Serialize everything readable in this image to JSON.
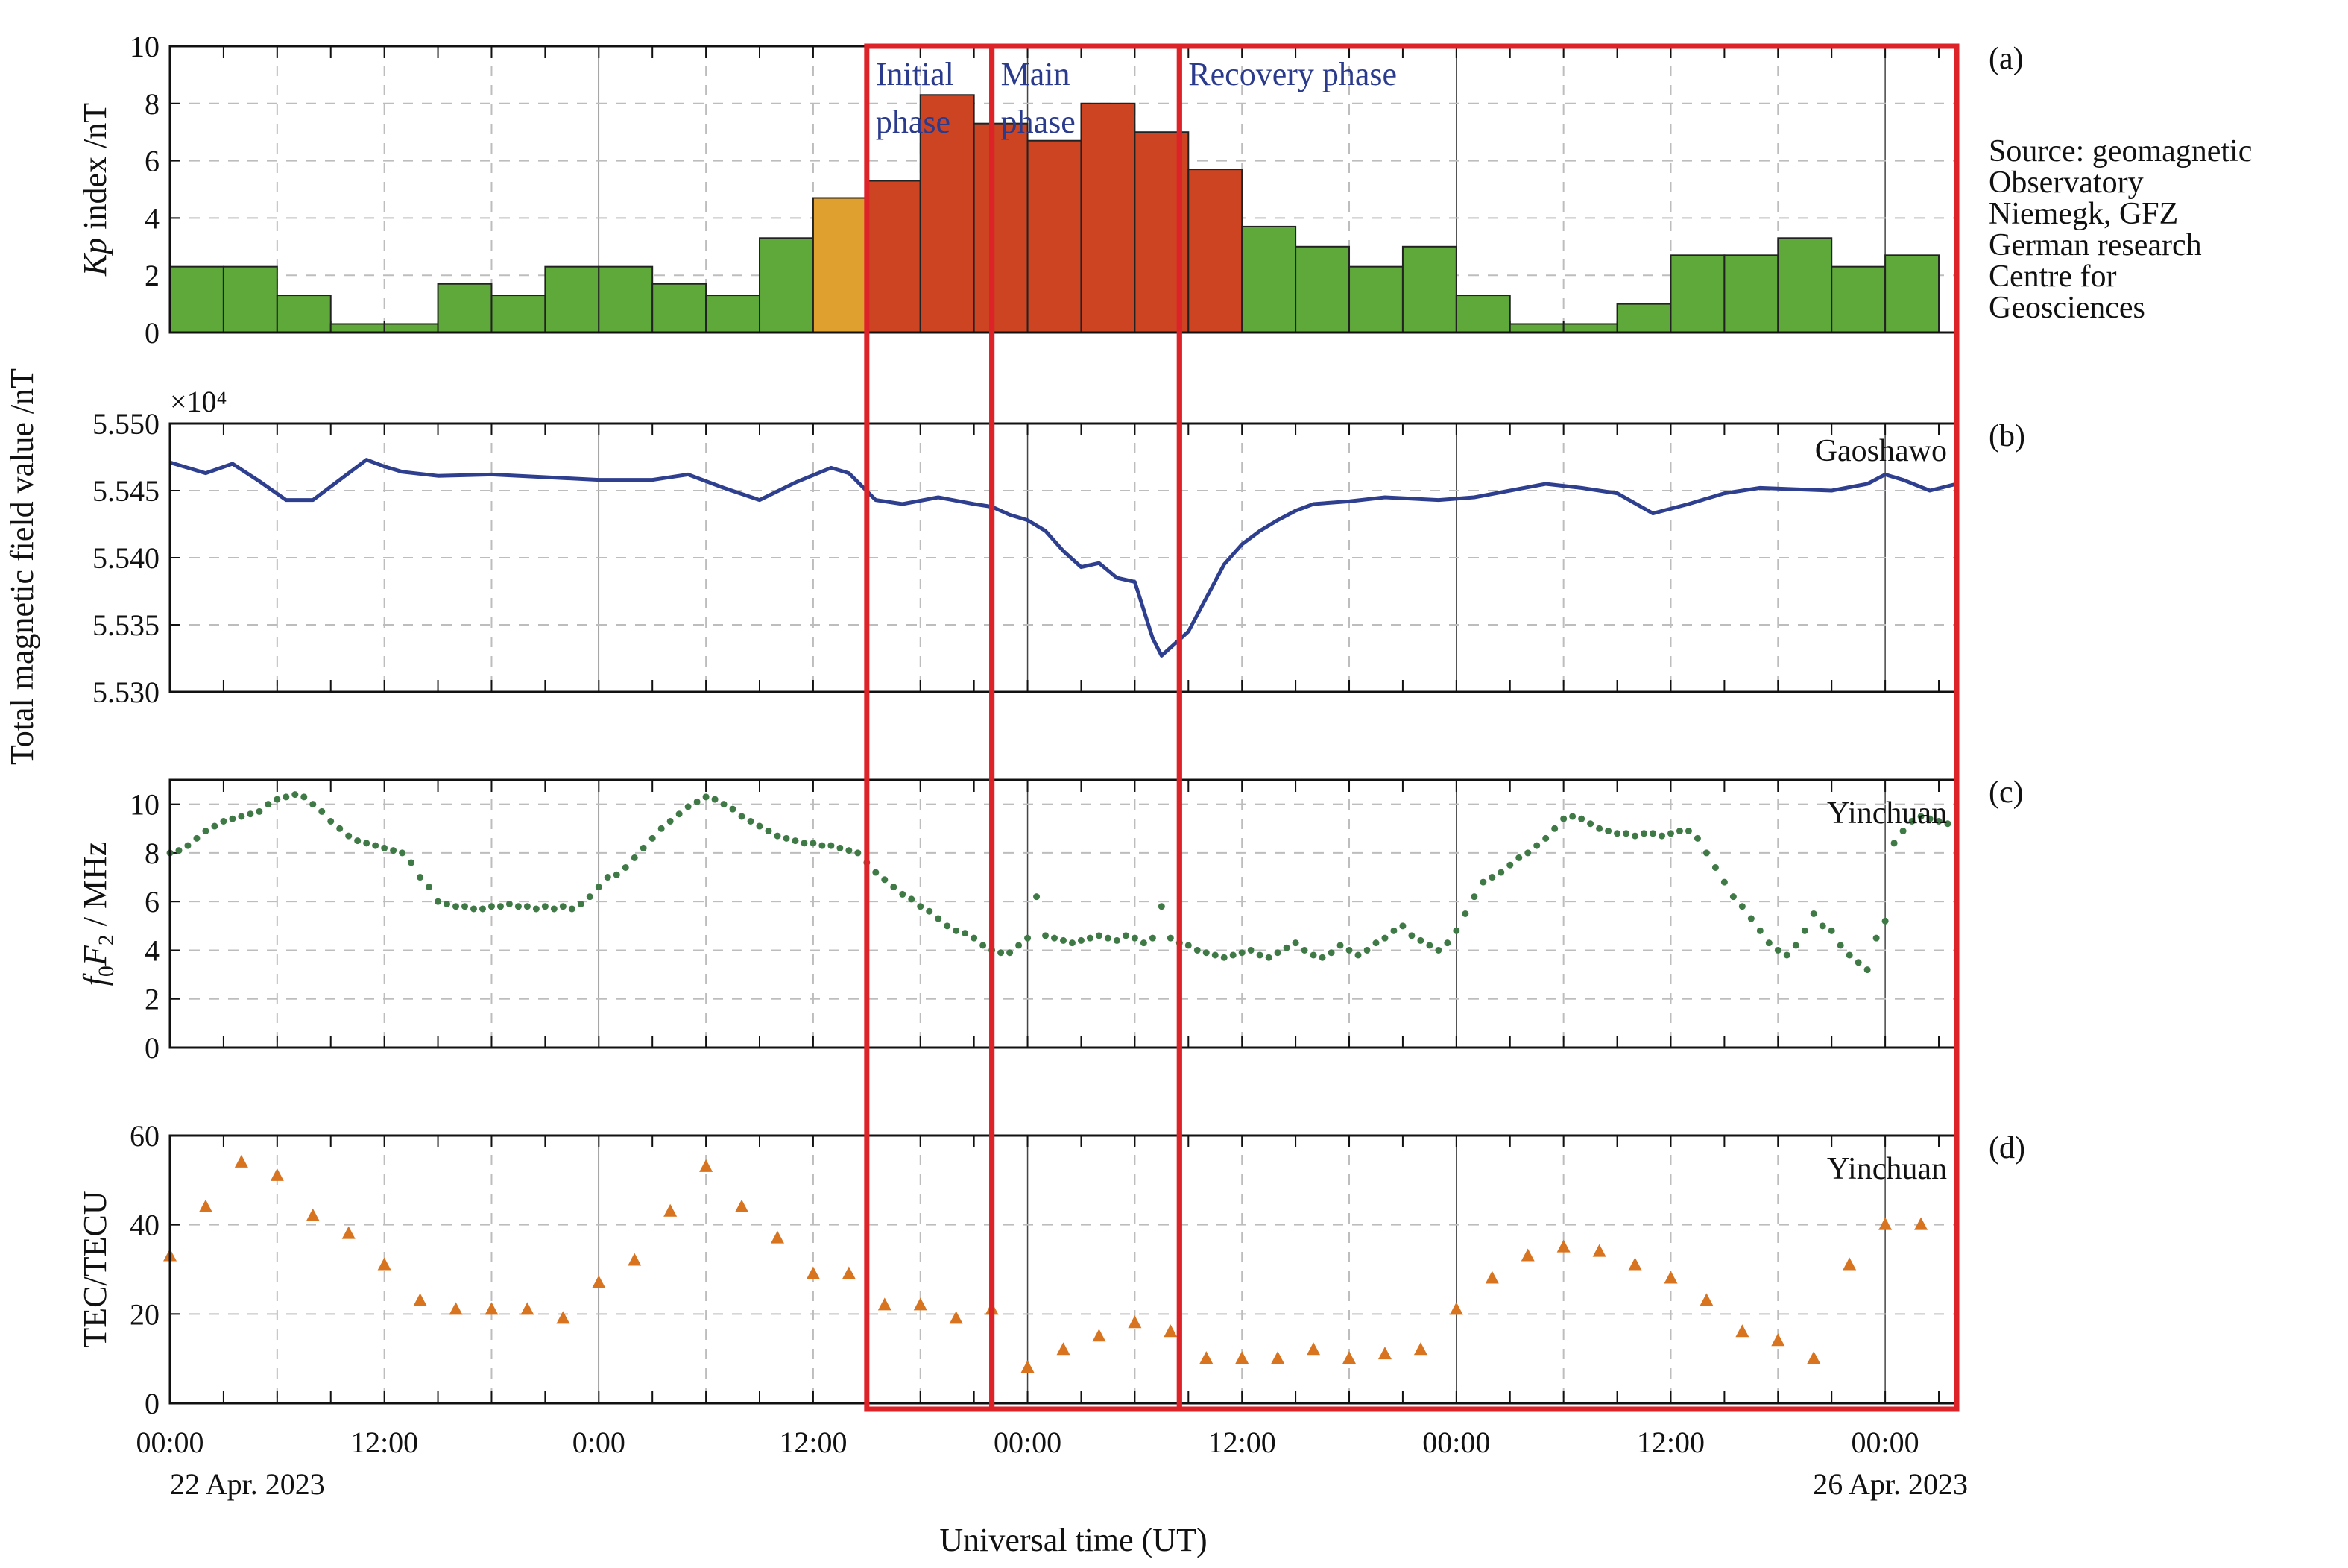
{
  "colors": {
    "kp_quiet": "#5fa83a",
    "kp_moderate": "#e0a030",
    "kp_storm": "#cc4422",
    "mag_line": "#2e3f8f",
    "fof2_points": "#3f7a46",
    "tec_points": "#d8741f",
    "phase_box": "#dd2228",
    "phase_text": "#2a3a8c"
  },
  "x_axis": {
    "title": "Universal time (UT)",
    "range_hours": [
      0,
      100
    ],
    "ticks": [
      {
        "hour": 0,
        "label": "00:00"
      },
      {
        "hour": 12,
        "label": "12:00"
      },
      {
        "hour": 24,
        "label": "0:00"
      },
      {
        "hour": 36,
        "label": "12:00"
      },
      {
        "hour": 48,
        "label": "00:00"
      },
      {
        "hour": 60,
        "label": "12:00"
      },
      {
        "hour": 72,
        "label": "00:00"
      },
      {
        "hour": 84,
        "label": "12:00"
      },
      {
        "hour": 96,
        "label": "00:00"
      }
    ],
    "date_left": "22 Apr. 2023",
    "date_right": "26 Apr. 2023"
  },
  "shared_ylabel": "Total magnetic field value /nT",
  "phases": [
    {
      "label": "Initial",
      "label2": "phase",
      "start_hour": 39,
      "end_hour": 46
    },
    {
      "label": "Main",
      "label2": "phase",
      "start_hour": 46,
      "end_hour": 56.5
    },
    {
      "label": "Recovery phase",
      "label2": "",
      "start_hour": 56.5,
      "end_hour": 100
    }
  ],
  "chart_data": [
    {
      "panel": "a",
      "tag": "(a)",
      "type": "bar",
      "ylabel_italic": "Kp",
      "ylabel_rest": " index /nT",
      "ylim": [
        0,
        10
      ],
      "yticks": [
        0,
        2,
        4,
        6,
        8,
        10
      ],
      "bin_hours": 3,
      "values": [
        2.3,
        2.3,
        1.3,
        0.3,
        0.3,
        1.7,
        1.3,
        2.3,
        2.3,
        1.7,
        1.3,
        3.3,
        4.7,
        5.3,
        8.3,
        7.3,
        6.7,
        8.0,
        7.0,
        5.7,
        3.7,
        3.0,
        2.3,
        3.0,
        1.3,
        0.3,
        0.3,
        1.0,
        2.7,
        2.7,
        3.3,
        2.3,
        2.7
      ],
      "source": [
        "Source: geomagnetic",
        "Observatory",
        "Niemegk, GFZ",
        "German research",
        "Centre for",
        "Geosciences"
      ]
    },
    {
      "panel": "b",
      "tag": "(b)",
      "type": "line",
      "station": "Gaoshawo",
      "multiplier": "×10⁴",
      "ylim": [
        5.53,
        5.55
      ],
      "yticks": [
        5.53,
        5.535,
        5.54,
        5.545,
        5.55
      ],
      "ytick_labels": [
        "5.530",
        "5.535",
        "5.540",
        "5.545",
        "5.550"
      ],
      "x": [
        0,
        2,
        3.5,
        5,
        6.5,
        8,
        9.5,
        11,
        12,
        13,
        15,
        18,
        21,
        24,
        27,
        29,
        31,
        33,
        35,
        37,
        38,
        39.5,
        41,
        43,
        45,
        46,
        47,
        48,
        49,
        50,
        51,
        52,
        53,
        54,
        55,
        55.5,
        56,
        57,
        58,
        59,
        60,
        61,
        62,
        63,
        64,
        66,
        68,
        71,
        73,
        75,
        77,
        79,
        81,
        83,
        85,
        87,
        89,
        91,
        93,
        95,
        96,
        97,
        98.5,
        100
      ],
      "values": [
        5.5471,
        5.5463,
        5.547,
        5.5457,
        5.5443,
        5.5443,
        5.5458,
        5.5473,
        5.5468,
        5.5464,
        5.5461,
        5.5462,
        5.546,
        5.5458,
        5.5458,
        5.5462,
        5.5452,
        5.5443,
        5.5456,
        5.5467,
        5.5463,
        5.5443,
        5.544,
        5.5445,
        5.544,
        5.5438,
        5.5432,
        5.5428,
        5.542,
        5.5405,
        5.5393,
        5.5396,
        5.5385,
        5.5382,
        5.534,
        5.5327,
        5.5333,
        5.5345,
        5.537,
        5.5395,
        5.541,
        5.542,
        5.5428,
        5.5435,
        5.544,
        5.5442,
        5.5445,
        5.5443,
        5.5445,
        5.545,
        5.5455,
        5.5452,
        5.5448,
        5.5433,
        5.544,
        5.5448,
        5.5452,
        5.5451,
        5.545,
        5.5455,
        5.5462,
        5.5458,
        5.545,
        5.5455
      ]
    },
    {
      "panel": "c",
      "tag": "(c)",
      "type": "scatter",
      "station": "Yinchuan",
      "ylabel_parts": [
        "f",
        "0",
        "F",
        "2",
        " / MHz"
      ],
      "ylim": [
        0,
        11
      ],
      "yticks": [
        0,
        2,
        4,
        6,
        8,
        10
      ],
      "x": [
        0,
        0.5,
        1,
        1.5,
        2,
        2.5,
        3,
        3.5,
        4,
        4.5,
        5,
        5.5,
        6,
        6.5,
        7,
        7.5,
        8,
        8.5,
        9,
        9.5,
        10,
        10.5,
        11,
        11.5,
        12,
        12.5,
        13,
        13.5,
        14,
        14.5,
        15,
        15.5,
        16,
        16.5,
        17,
        17.5,
        18,
        18.5,
        19,
        19.5,
        20,
        20.5,
        21,
        21.5,
        22,
        22.5,
        23,
        23.5,
        24,
        24.5,
        25,
        25.5,
        26,
        26.5,
        27,
        27.5,
        28,
        28.5,
        29,
        29.5,
        30,
        30.5,
        31,
        31.5,
        32,
        32.5,
        33,
        33.5,
        34,
        34.5,
        35,
        35.5,
        36,
        36.5,
        37,
        37.5,
        38,
        38.5,
        39,
        39.5,
        40,
        40.5,
        41,
        41.5,
        42,
        42.5,
        43,
        43.5,
        44,
        44.5,
        45,
        45.5,
        46,
        46.5,
        47,
        47.5,
        48,
        48.5,
        49,
        49.5,
        50,
        50.5,
        51,
        51.5,
        52,
        52.5,
        53,
        53.5,
        54,
        54.5,
        55,
        55.5,
        56,
        56.5,
        57,
        57.5,
        58,
        58.5,
        59,
        59.5,
        60,
        60.5,
        61,
        61.5,
        62,
        62.5,
        63,
        63.5,
        64,
        64.5,
        65,
        65.5,
        66,
        66.5,
        67,
        67.5,
        68,
        68.5,
        69,
        69.5,
        70,
        70.5,
        71,
        71.5,
        72,
        72.5,
        73,
        73.5,
        74,
        74.5,
        75,
        75.5,
        76,
        76.5,
        77,
        77.5,
        78,
        78.5,
        79,
        79.5,
        80,
        80.5,
        81,
        81.5,
        82,
        82.5,
        83,
        83.5,
        84,
        84.5,
        85,
        85.5,
        86,
        86.5,
        87,
        87.5,
        88,
        88.5,
        89,
        89.5,
        90,
        90.5,
        91,
        91.5,
        92,
        92.5,
        93,
        93.5,
        94,
        94.5,
        95,
        95.5,
        96,
        96.5,
        97,
        97.5,
        98,
        98.5,
        99,
        99.5
      ],
      "values": [
        8.0,
        8.1,
        8.3,
        8.6,
        8.9,
        9.1,
        9.3,
        9.4,
        9.5,
        9.6,
        9.7,
        10.0,
        10.2,
        10.3,
        10.4,
        10.3,
        10.0,
        9.7,
        9.3,
        9.0,
        8.7,
        8.5,
        8.4,
        8.3,
        8.2,
        8.1,
        8.0,
        7.6,
        7.0,
        6.6,
        6.0,
        5.9,
        5.8,
        5.8,
        5.7,
        5.7,
        5.8,
        5.8,
        5.9,
        5.8,
        5.8,
        5.7,
        5.8,
        5.7,
        5.8,
        5.7,
        5.9,
        6.2,
        6.6,
        7.0,
        7.1,
        7.4,
        7.8,
        8.2,
        8.6,
        9.0,
        9.3,
        9.6,
        9.9,
        10.1,
        10.3,
        10.2,
        10.0,
        9.8,
        9.5,
        9.3,
        9.1,
        8.9,
        8.7,
        8.6,
        8.5,
        8.4,
        8.4,
        8.3,
        8.3,
        8.2,
        8.1,
        8.0,
        7.6,
        7.2,
        6.9,
        6.6,
        6.3,
        6.1,
        5.8,
        5.6,
        5.3,
        5.0,
        4.8,
        4.7,
        4.5,
        4.2,
        4.0,
        3.9,
        3.9,
        4.2,
        4.5,
        6.2,
        4.6,
        4.5,
        4.4,
        4.3,
        4.4,
        4.5,
        4.6,
        4.5,
        4.4,
        4.6,
        4.5,
        4.3,
        4.5,
        5.8,
        4.5,
        4.3,
        4.2,
        4.0,
        3.9,
        3.8,
        3.7,
        3.8,
        3.9,
        4.0,
        3.8,
        3.7,
        3.9,
        4.1,
        4.3,
        4.0,
        3.8,
        3.7,
        3.9,
        4.2,
        4.0,
        3.8,
        4.0,
        4.3,
        4.5,
        4.8,
        5.0,
        4.6,
        4.4,
        4.2,
        4.0,
        4.3,
        4.8,
        5.5,
        6.2,
        6.8,
        7.0,
        7.2,
        7.5,
        7.8,
        8.0,
        8.3,
        8.6,
        9.0,
        9.4,
        9.5,
        9.4,
        9.2,
        9.0,
        8.9,
        8.8,
        8.8,
        8.7,
        8.8,
        8.8,
        8.7,
        8.8,
        8.9,
        8.9,
        8.6,
        8.0,
        7.4,
        6.8,
        6.2,
        5.8,
        5.3,
        4.8,
        4.3,
        4.0,
        3.8,
        4.2,
        4.8,
        5.5,
        5.0,
        4.8,
        4.2,
        3.8,
        3.5,
        3.2,
        4.5,
        5.2,
        8.4,
        8.9,
        9.3,
        9.5,
        9.4,
        9.3,
        9.2
      ]
    },
    {
      "panel": "d",
      "tag": "(d)",
      "type": "scatter",
      "station": "Yinchuan",
      "ylabel": "TEC/TECU",
      "ylim": [
        0,
        60
      ],
      "yticks": [
        0,
        20,
        40,
        60
      ],
      "x": [
        0,
        2,
        4,
        6,
        8,
        10,
        12,
        14,
        16,
        18,
        20,
        22,
        24,
        26,
        28,
        30,
        32,
        34,
        36,
        38,
        40,
        42,
        44,
        46,
        48,
        50,
        52,
        54,
        56,
        58,
        60,
        62,
        64,
        66,
        68,
        70,
        72,
        74,
        76,
        78,
        80,
        82,
        84,
        86,
        88,
        90,
        92,
        94,
        96,
        98
      ],
      "values": [
        33,
        44,
        54,
        51,
        42,
        38,
        31,
        23,
        21,
        21,
        21,
        19,
        27,
        32,
        43,
        53,
        44,
        37,
        29,
        29,
        22,
        22,
        19,
        21,
        8,
        12,
        15,
        18,
        16,
        10,
        10,
        10,
        12,
        10,
        11,
        12,
        21,
        28,
        33,
        35,
        34,
        31,
        28,
        23,
        16,
        14,
        10,
        31,
        40,
        40
      ]
    }
  ]
}
